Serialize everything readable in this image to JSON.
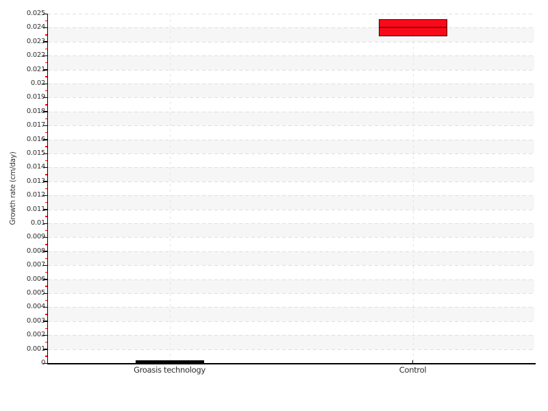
{
  "page": {
    "background": "#ffffff"
  },
  "chart_data": {
    "type": "box",
    "title": "",
    "xlabel": "",
    "ylabel": "Growth rate (cm/day)",
    "categories": [
      "Groasis technology",
      "Control"
    ],
    "series": [
      {
        "category": "Groasis technology",
        "low": 0.0,
        "high": 0.0002,
        "median": null,
        "fill": "#0a0a0a",
        "border": "#000000",
        "median_color": null
      },
      {
        "category": "Control",
        "low": 0.0234,
        "high": 0.0246,
        "median": 0.024,
        "fill": "#fa0a19",
        "border": "#47080e",
        "median_color": "#8b0010"
      }
    ],
    "ylim": [
      0,
      0.025
    ],
    "ytick_step": 0.001,
    "yminor_step": 0.0005,
    "ytick_labels": [
      "0",
      "0.001",
      "0.002",
      "0.003",
      "0.004",
      "0.005",
      "0.006",
      "0.007",
      "0.008",
      "0.009",
      "0.01",
      "0.011",
      "0.012",
      "0.013",
      "0.014",
      "0.015",
      "0.016",
      "0.017",
      "0.018",
      "0.019",
      "0.02",
      "0.021",
      "0.022",
      "0.023",
      "0.024",
      "0.025"
    ],
    "legend": null,
    "grid": {
      "horizontal": "dashed",
      "vertical_at_categories": "dashed",
      "gridline_color": "#dedede",
      "vertical_gridline_color": "#e6e6e6",
      "band_color": "#f6f6f6",
      "alternating_bands": true,
      "minor_tick_color": "#ff0000",
      "axis_color": "#000000",
      "label_color": "#2e2e2e"
    }
  }
}
